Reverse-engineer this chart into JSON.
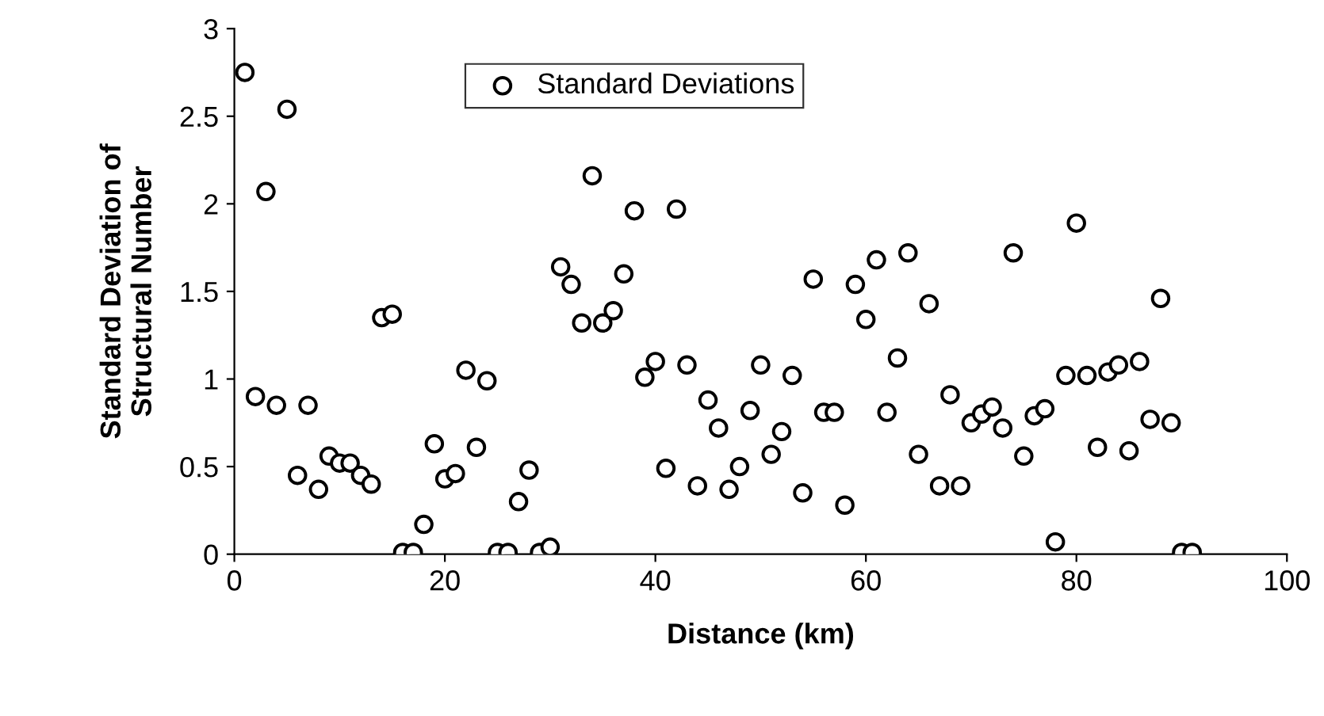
{
  "chart_data": {
    "type": "scatter",
    "xlabel": "Distance (km)",
    "ylabel": "Standard Deviation of\nStructural Number",
    "x": [
      1,
      2,
      3,
      4,
      5,
      6,
      7,
      8,
      9,
      10,
      11,
      12,
      13,
      14,
      15,
      16,
      17,
      18,
      19,
      20,
      21,
      22,
      23,
      24,
      25,
      26,
      27,
      28,
      29,
      30,
      31,
      32,
      33,
      34,
      35,
      36,
      37,
      38,
      39,
      40,
      41,
      42,
      43,
      44,
      45,
      46,
      47,
      48,
      49,
      50,
      51,
      52,
      53,
      54,
      55,
      56,
      57,
      58,
      59,
      60,
      61,
      62,
      63,
      64,
      65,
      66,
      67,
      68,
      69,
      70,
      71,
      72,
      73,
      74,
      75,
      76,
      77,
      78,
      79,
      80,
      81,
      82,
      83,
      84,
      85,
      86,
      87,
      88,
      89,
      90,
      91
    ],
    "series": [
      {
        "name": "Standard Deviations",
        "color": "#000000",
        "values": [
          2.75,
          0.9,
          2.07,
          0.85,
          2.54,
          0.45,
          0.85,
          0.37,
          0.56,
          0.52,
          0.52,
          0.45,
          0.4,
          1.35,
          1.37,
          0.01,
          0.01,
          0.17,
          0.63,
          0.43,
          0.46,
          1.05,
          0.61,
          0.99,
          0.01,
          0.01,
          0.3,
          0.48,
          0.01,
          0.04,
          1.64,
          1.54,
          1.32,
          2.16,
          1.32,
          1.39,
          1.6,
          1.96,
          1.01,
          1.1,
          0.49,
          1.97,
          1.08,
          0.39,
          0.88,
          0.72,
          0.37,
          0.5,
          0.82,
          1.08,
          0.57,
          0.7,
          1.02,
          0.35,
          1.57,
          0.81,
          0.81,
          0.28,
          1.54,
          1.34,
          1.68,
          0.81,
          1.12,
          1.72,
          0.57,
          1.43,
          0.39,
          0.91,
          0.39,
          0.75,
          0.8,
          0.84,
          0.72,
          1.72,
          0.56,
          0.79,
          0.83,
          0.07,
          1.02,
          1.89,
          1.02,
          0.61,
          1.04,
          1.08,
          0.59,
          1.1,
          0.77,
          1.46,
          0.75,
          0.01,
          0.01
        ]
      }
    ],
    "xlim": [
      0,
      100
    ],
    "xticks": [
      0,
      20,
      40,
      60,
      80,
      100
    ],
    "ylim": [
      0,
      3
    ],
    "yticks": [
      0,
      0.5,
      1,
      1.5,
      2,
      2.5,
      3
    ],
    "marker": "circle",
    "legend": "top",
    "grid": false
  }
}
